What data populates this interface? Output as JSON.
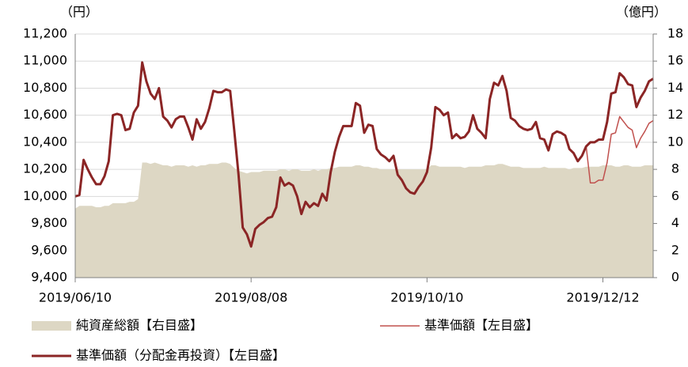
{
  "chart_data": {
    "type": "line",
    "y_unit": "（円）",
    "y2_unit": "（億円）",
    "categories": [
      "2019/06/10",
      null,
      null,
      null,
      null,
      null,
      null,
      null,
      null,
      null,
      null,
      null,
      null,
      null,
      null,
      null,
      null,
      null,
      null,
      null,
      null,
      null,
      null,
      null,
      null,
      null,
      null,
      null,
      null,
      null,
      null,
      null,
      null,
      null,
      null,
      null,
      null,
      null,
      null,
      null,
      null,
      null,
      "2019/08/08",
      null,
      null,
      null,
      null,
      null,
      null,
      null,
      null,
      null,
      null,
      null,
      null,
      null,
      null,
      null,
      null,
      null,
      null,
      null,
      null,
      null,
      null,
      null,
      null,
      null,
      null,
      null,
      null,
      null,
      null,
      null,
      null,
      null,
      null,
      null,
      null,
      null,
      null,
      null,
      null,
      null,
      "2019/10/10",
      null,
      null,
      null,
      null,
      null,
      null,
      null,
      null,
      null,
      null,
      null,
      null,
      null,
      null,
      null,
      null,
      null,
      null,
      null,
      null,
      null,
      null,
      null,
      null,
      null,
      null,
      null,
      null,
      null,
      null,
      null,
      null,
      null,
      null,
      null,
      null,
      null,
      null,
      null,
      null,
      null,
      "2019/12/12",
      null,
      null,
      null,
      null,
      null,
      null,
      null,
      null,
      null,
      null,
      null,
      null
    ],
    "series": [
      {
        "name": "純資産総額【右目盛】",
        "type": "area",
        "axis": "y2",
        "color": "#ddd7c4",
        "values": [
          5.1,
          5.3,
          5.3,
          5.3,
          5.3,
          5.2,
          5.2,
          5.3,
          5.3,
          5.5,
          5.5,
          5.5,
          5.5,
          5.6,
          5.6,
          5.8,
          8.5,
          8.5,
          8.4,
          8.5,
          8.4,
          8.3,
          8.3,
          8.2,
          8.3,
          8.3,
          8.3,
          8.2,
          8.3,
          8.2,
          8.3,
          8.3,
          8.4,
          8.4,
          8.4,
          8.5,
          8.5,
          8.4,
          8.1,
          7.9,
          7.8,
          7.7,
          7.8,
          7.8,
          7.8,
          7.9,
          7.9,
          7.9,
          7.9,
          8.0,
          8.0,
          7.9,
          8.0,
          8.0,
          7.9,
          7.9,
          7.9,
          8.0,
          7.9,
          8.0,
          8.0,
          8.1,
          8.1,
          8.2,
          8.2,
          8.2,
          8.2,
          8.3,
          8.3,
          8.2,
          8.2,
          8.1,
          8.1,
          8.0,
          8.0,
          8.0,
          8.0,
          8.0,
          8.0,
          8.0,
          8.0,
          8.0,
          8.0,
          8.0,
          8.0,
          8.3,
          8.3,
          8.2,
          8.2,
          8.2,
          8.2,
          8.2,
          8.2,
          8.1,
          8.2,
          8.2,
          8.2,
          8.2,
          8.3,
          8.3,
          8.3,
          8.4,
          8.4,
          8.3,
          8.2,
          8.2,
          8.2,
          8.1,
          8.1,
          8.1,
          8.1,
          8.1,
          8.2,
          8.1,
          8.1,
          8.1,
          8.1,
          8.1,
          8.0,
          8.1,
          8.1,
          8.1,
          8.2,
          8.2,
          8.2,
          8.2,
          8.3,
          8.3,
          8.3,
          8.2,
          8.2,
          8.3,
          8.3,
          8.2,
          8.2,
          8.2,
          8.3,
          8.3,
          8.3
        ]
      },
      {
        "name": "基準価額【左目盛】",
        "type": "line",
        "axis": "y",
        "color": "#c0504d",
        "width": 1.5,
        "values": [
          10000,
          10010,
          10270,
          10200,
          10140,
          10090,
          10090,
          10150,
          10260,
          10600,
          10610,
          10600,
          10490,
          10500,
          10620,
          10670,
          10990,
          10850,
          10760,
          10720,
          10800,
          10590,
          10560,
          10510,
          10570,
          10590,
          10590,
          10510,
          10420,
          10570,
          10500,
          10550,
          10650,
          10780,
          10770,
          10770,
          10790,
          10780,
          10480,
          10160,
          9770,
          9720,
          9630,
          9760,
          9790,
          9810,
          9840,
          9850,
          9920,
          10140,
          10080,
          10100,
          10080,
          10000,
          9870,
          9960,
          9920,
          9950,
          9930,
          10020,
          9970,
          10180,
          10330,
          10440,
          10520,
          10520,
          10520,
          10690,
          10670,
          10470,
          10530,
          10520,
          10350,
          10310,
          10290,
          10260,
          10300,
          10160,
          10120,
          10060,
          10030,
          10020,
          10070,
          10110,
          10180,
          10360,
          10660,
          10640,
          10600,
          10620,
          10430,
          10460,
          10430,
          10440,
          10480,
          10600,
          10500,
          10470,
          10430,
          10720,
          10840,
          10820,
          10890,
          10780,
          10580,
          10560,
          10520,
          10500,
          10490,
          10500,
          10550,
          10430,
          10420,
          10340,
          10460,
          10480,
          10470,
          10450,
          10350,
          10320,
          10260,
          10300,
          10370,
          10100,
          10100,
          10120,
          10120,
          10250,
          10460,
          10470,
          10590,
          10550,
          10510,
          10490,
          10360,
          10430,
          10480,
          10540,
          10560
        ]
      },
      {
        "name": "基準価額（分配金再投資）【左目盛】",
        "type": "line",
        "axis": "y",
        "color": "#8b2525",
        "width": 3,
        "values": [
          10000,
          10010,
          10270,
          10200,
          10140,
          10090,
          10090,
          10150,
          10260,
          10600,
          10610,
          10600,
          10490,
          10500,
          10620,
          10670,
          10990,
          10850,
          10760,
          10720,
          10800,
          10590,
          10560,
          10510,
          10570,
          10590,
          10590,
          10510,
          10420,
          10570,
          10500,
          10550,
          10650,
          10780,
          10770,
          10770,
          10790,
          10780,
          10480,
          10160,
          9770,
          9720,
          9630,
          9760,
          9790,
          9810,
          9840,
          9850,
          9920,
          10140,
          10080,
          10100,
          10080,
          10000,
          9870,
          9960,
          9920,
          9950,
          9930,
          10020,
          9970,
          10180,
          10330,
          10440,
          10520,
          10520,
          10520,
          10690,
          10670,
          10470,
          10530,
          10520,
          10350,
          10310,
          10290,
          10260,
          10300,
          10160,
          10120,
          10060,
          10030,
          10020,
          10070,
          10110,
          10180,
          10360,
          10660,
          10640,
          10600,
          10620,
          10430,
          10460,
          10430,
          10440,
          10480,
          10600,
          10500,
          10470,
          10430,
          10720,
          10840,
          10820,
          10890,
          10780,
          10580,
          10560,
          10520,
          10500,
          10490,
          10500,
          10550,
          10430,
          10420,
          10340,
          10460,
          10480,
          10470,
          10450,
          10350,
          10320,
          10260,
          10300,
          10370,
          10400,
          10400,
          10420,
          10420,
          10550,
          10760,
          10770,
          10910,
          10880,
          10830,
          10820,
          10660,
          10730,
          10780,
          10850,
          10870
        ]
      }
    ],
    "ylim": [
      9400,
      11200
    ],
    "yticks": [
      {
        "value": 9400,
        "label": "9,400"
      },
      {
        "value": 9600,
        "label": "9,600"
      },
      {
        "value": 9800,
        "label": "9,800"
      },
      {
        "value": 10000,
        "label": "10,000"
      },
      {
        "value": 10200,
        "label": "10,200"
      },
      {
        "value": 10400,
        "label": "10,400"
      },
      {
        "value": 10600,
        "label": "10,600"
      },
      {
        "value": 10800,
        "label": "10,800"
      },
      {
        "value": 11000,
        "label": "11,000"
      },
      {
        "value": 11200,
        "label": "11,200"
      }
    ],
    "y2lim": [
      0,
      18
    ],
    "y2ticks": [
      0,
      2,
      4,
      6,
      8,
      10,
      12,
      14,
      16,
      18
    ],
    "grid": true
  }
}
